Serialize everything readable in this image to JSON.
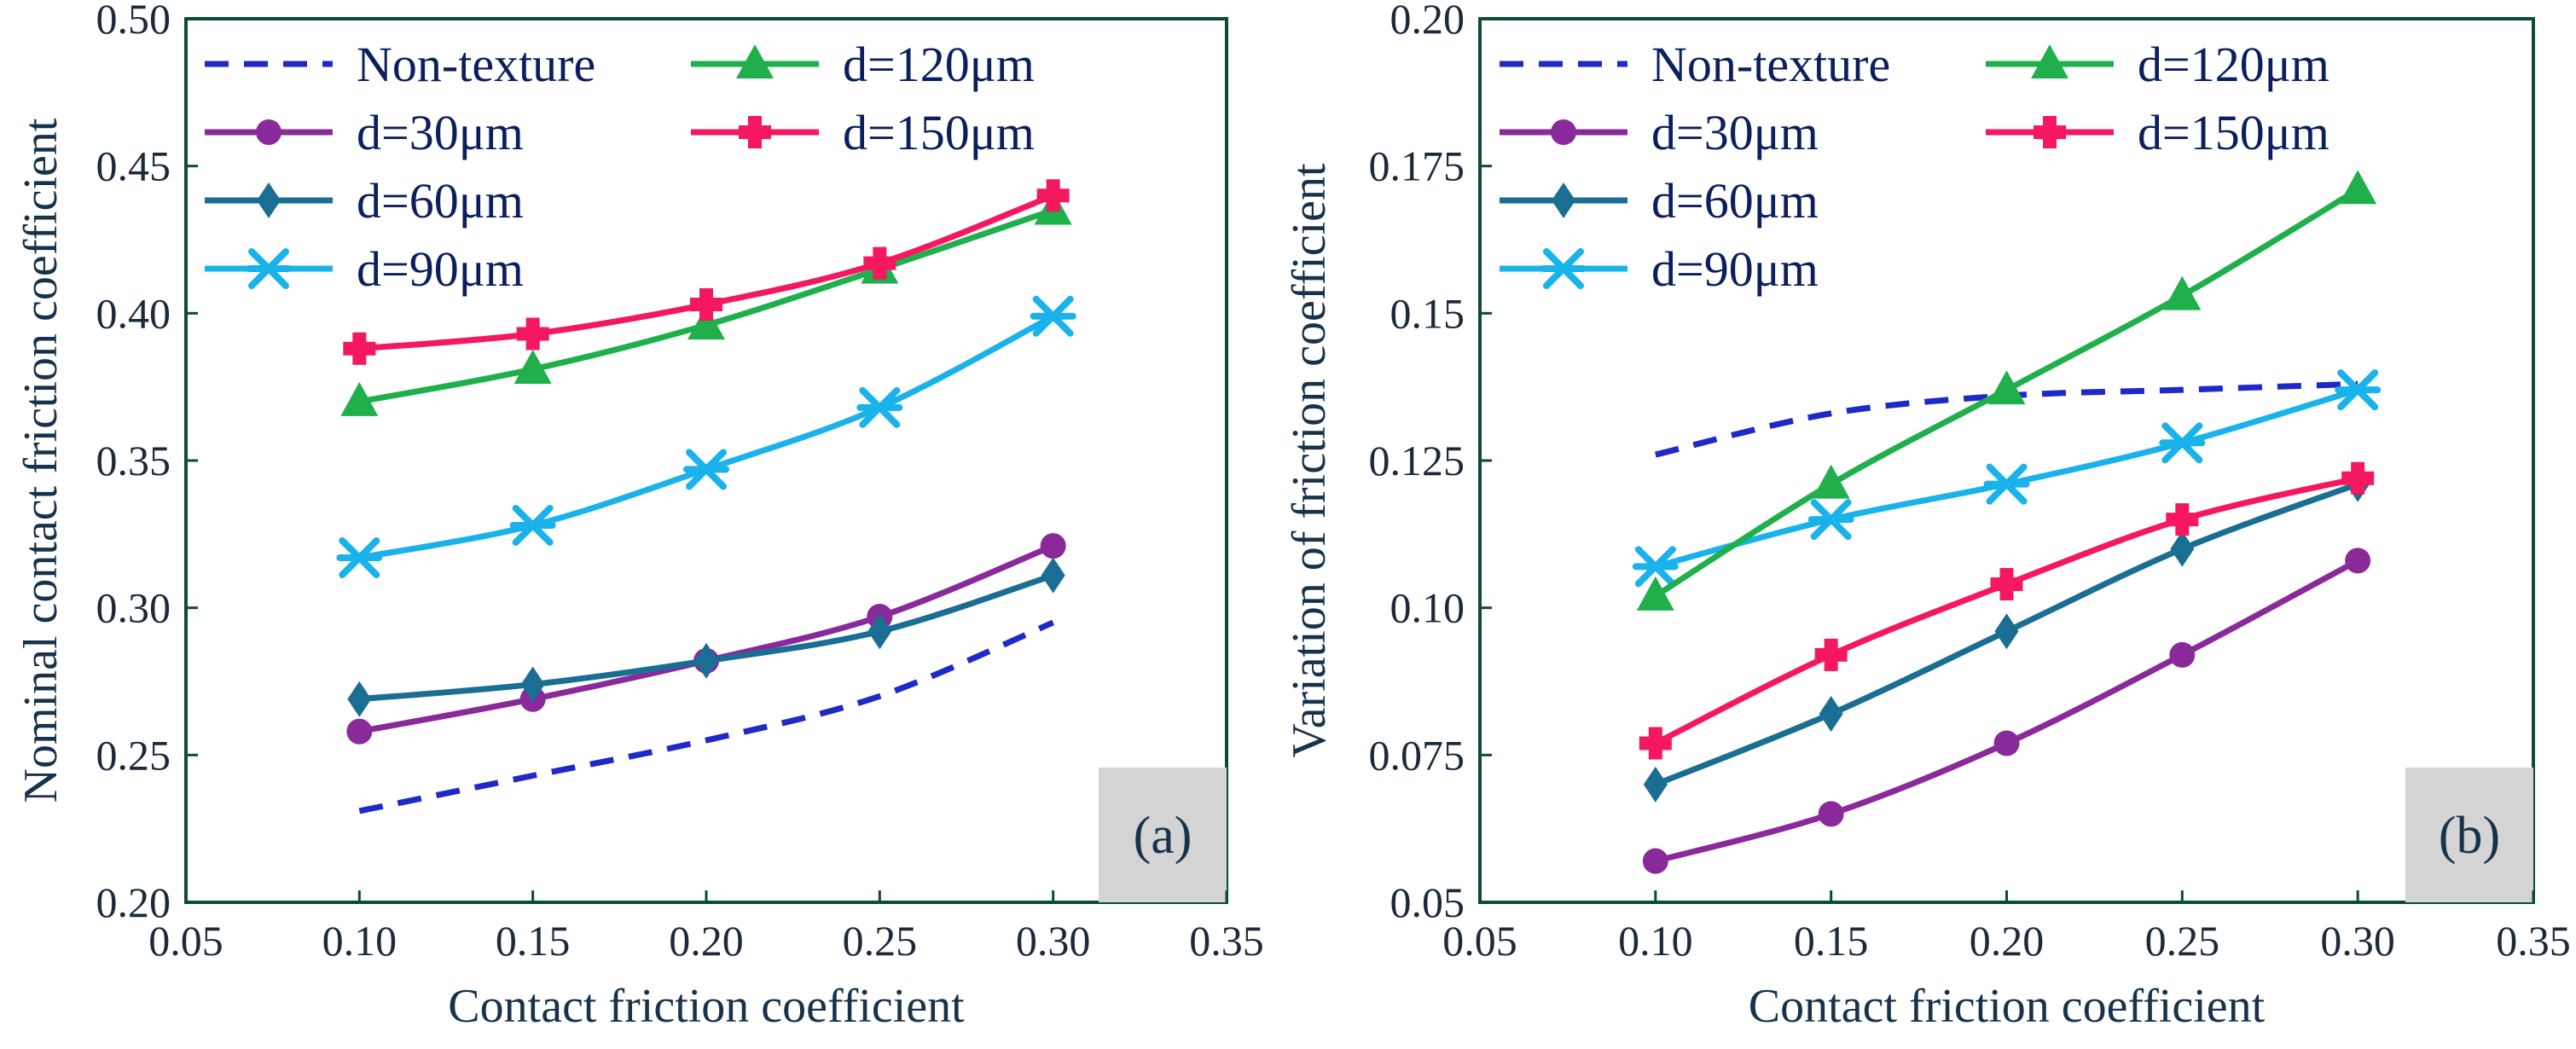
{
  "colors": {
    "non_texture": "#1f28c8",
    "d30": "#8a2a9a",
    "d60": "#1b6e93",
    "d90": "#19b2ea",
    "d120": "#1fb04c",
    "d150": "#f5175f",
    "axis": "#0d4a3a",
    "tag_bg": "#d4d4d4"
  },
  "chart_data": [
    {
      "type": "line",
      "panel_label": "(a)",
      "xlabel": "Contact friction coefficient",
      "ylabel": "Nominal contact friction coefficient",
      "xlim": [
        0.05,
        0.35
      ],
      "ylim": [
        0.2,
        0.5
      ],
      "x_ticks": [
        "0.05",
        "0.10",
        "0.15",
        "0.20",
        "0.25",
        "0.30",
        "0.35"
      ],
      "y_ticks": [
        "0.20",
        "0.25",
        "0.30",
        "0.35",
        "0.40",
        "0.45",
        "0.50"
      ],
      "legend": {
        "position": "top-left",
        "columns": 2
      },
      "series": [
        {
          "name": "Non-texture",
          "key": "non_texture",
          "dashed": true,
          "marker": "none",
          "x": [
            0.1,
            0.15,
            0.2,
            0.25,
            0.3
          ],
          "values": [
            0.231,
            0.243,
            0.255,
            0.27,
            0.295
          ]
        },
        {
          "name": "d=30μm",
          "key": "d30",
          "marker": "circle",
          "x": [
            0.1,
            0.15,
            0.2,
            0.25,
            0.3
          ],
          "values": [
            0.258,
            0.269,
            0.282,
            0.297,
            0.321
          ]
        },
        {
          "name": "d=60μm",
          "key": "d60",
          "marker": "diamond",
          "x": [
            0.1,
            0.15,
            0.2,
            0.25,
            0.3
          ],
          "values": [
            0.269,
            0.274,
            0.282,
            0.292,
            0.311
          ]
        },
        {
          "name": "d=90μm",
          "key": "d90",
          "marker": "star",
          "x": [
            0.1,
            0.15,
            0.2,
            0.25,
            0.3
          ],
          "values": [
            0.317,
            0.328,
            0.347,
            0.368,
            0.399
          ]
        },
        {
          "name": "d=120μm",
          "key": "d120",
          "marker": "triangle",
          "x": [
            0.1,
            0.15,
            0.2,
            0.25,
            0.3
          ],
          "values": [
            0.37,
            0.381,
            0.396,
            0.415,
            0.435
          ]
        },
        {
          "name": "d=150μm",
          "key": "d150",
          "marker": "cross",
          "x": [
            0.1,
            0.15,
            0.2,
            0.25,
            0.3
          ],
          "values": [
            0.388,
            0.393,
            0.403,
            0.417,
            0.44
          ]
        }
      ]
    },
    {
      "type": "line",
      "panel_label": "(b)",
      "xlabel": "Contact friction coefficient",
      "ylabel": "Variation of friction coefficient",
      "xlim": [
        0.05,
        0.35
      ],
      "ylim": [
        0.05,
        0.2
      ],
      "x_ticks": [
        "0.05",
        "0.10",
        "0.15",
        "0.20",
        "0.25",
        "0.30",
        "0.35"
      ],
      "y_ticks": [
        "0.05",
        "0.075",
        "0.10",
        "0.125",
        "0.15",
        "0.175",
        "0.20"
      ],
      "legend": {
        "position": "top-left",
        "columns": 2
      },
      "series": [
        {
          "name": "Non-texture",
          "key": "non_texture",
          "dashed": true,
          "marker": "none",
          "x": [
            0.1,
            0.15,
            0.2,
            0.25,
            0.3
          ],
          "values": [
            0.126,
            0.133,
            0.136,
            0.137,
            0.138
          ]
        },
        {
          "name": "d=30μm",
          "key": "d30",
          "marker": "circle",
          "x": [
            0.1,
            0.15,
            0.2,
            0.25,
            0.3
          ],
          "values": [
            0.057,
            0.065,
            0.077,
            0.092,
            0.108
          ]
        },
        {
          "name": "d=60μm",
          "key": "d60",
          "marker": "diamond",
          "x": [
            0.1,
            0.15,
            0.2,
            0.25,
            0.3
          ],
          "values": [
            0.07,
            0.082,
            0.096,
            0.11,
            0.121
          ]
        },
        {
          "name": "d=90μm",
          "key": "d90",
          "marker": "star",
          "x": [
            0.1,
            0.15,
            0.2,
            0.25,
            0.3
          ],
          "values": [
            0.107,
            0.115,
            0.121,
            0.128,
            0.137
          ]
        },
        {
          "name": "d=120μm",
          "key": "d120",
          "marker": "triangle",
          "x": [
            0.1,
            0.15,
            0.2,
            0.25,
            0.3
          ],
          "values": [
            0.102,
            0.121,
            0.137,
            0.153,
            0.171
          ]
        },
        {
          "name": "d=150μm",
          "key": "d150",
          "marker": "cross",
          "x": [
            0.1,
            0.15,
            0.2,
            0.25,
            0.3
          ],
          "values": [
            0.077,
            0.092,
            0.104,
            0.115,
            0.122
          ]
        }
      ]
    }
  ]
}
